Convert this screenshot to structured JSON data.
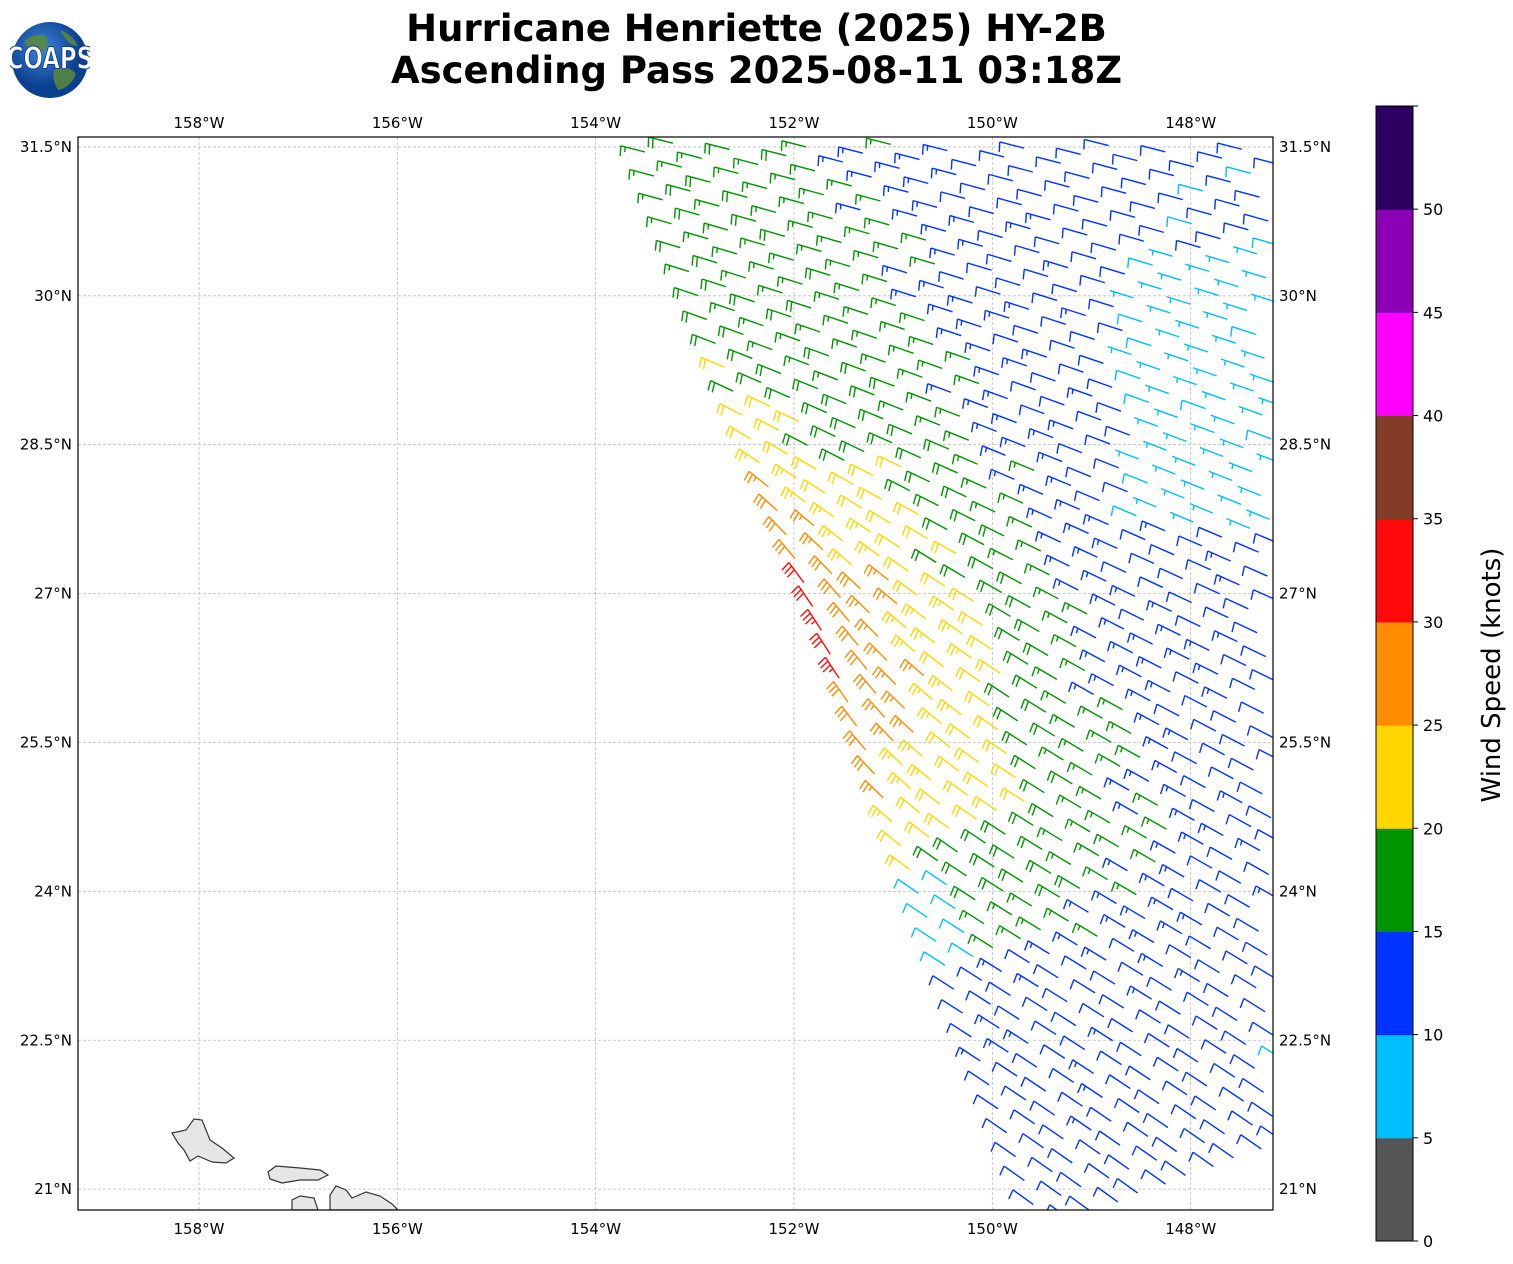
{
  "title": {
    "line1": "Hurricane Henriette (2025) HY-2B",
    "line2": "Ascending Pass 2025-08-11 03:18Z"
  },
  "logo": {
    "text": "COAPS"
  },
  "axes": {
    "lon_ticks": [
      {
        "value": -158,
        "label": "158°W"
      },
      {
        "value": -156,
        "label": "156°W"
      },
      {
        "value": -154,
        "label": "154°W"
      },
      {
        "value": -152,
        "label": "152°W"
      },
      {
        "value": -150,
        "label": "150°W"
      },
      {
        "value": -148,
        "label": "148°W"
      }
    ],
    "lat_ticks": [
      {
        "value": 31.5,
        "label": "31.5°N"
      },
      {
        "value": 30,
        "label": "30°N"
      },
      {
        "value": 28.5,
        "label": "28.5°N"
      },
      {
        "value": 27,
        "label": "27°N"
      },
      {
        "value": 25.5,
        "label": "25.5°N"
      },
      {
        "value": 24,
        "label": "24°N"
      },
      {
        "value": 22.5,
        "label": "22.5°N"
      },
      {
        "value": 21,
        "label": "21°N"
      }
    ],
    "lon_range": [
      -159.22,
      -147.17
    ],
    "lat_range": [
      20.79,
      31.6
    ]
  },
  "colorbar": {
    "label": "Wind Speed (knots)",
    "levels": [
      0,
      5,
      10,
      15,
      20,
      25,
      30,
      35,
      40,
      45,
      50,
      55
    ],
    "tick_labels": [
      "0",
      "5",
      "10",
      "15",
      "20",
      "25",
      "30",
      "35",
      "40",
      "45",
      "50"
    ],
    "colors": [
      "#555555",
      "#00bfff",
      "#0033ff",
      "#009400",
      "#ffd700",
      "#ff8c00",
      "#ff0a0a",
      "#823c28",
      "#ff00ff",
      "#8b00b4",
      "#2b0060"
    ]
  }
}
